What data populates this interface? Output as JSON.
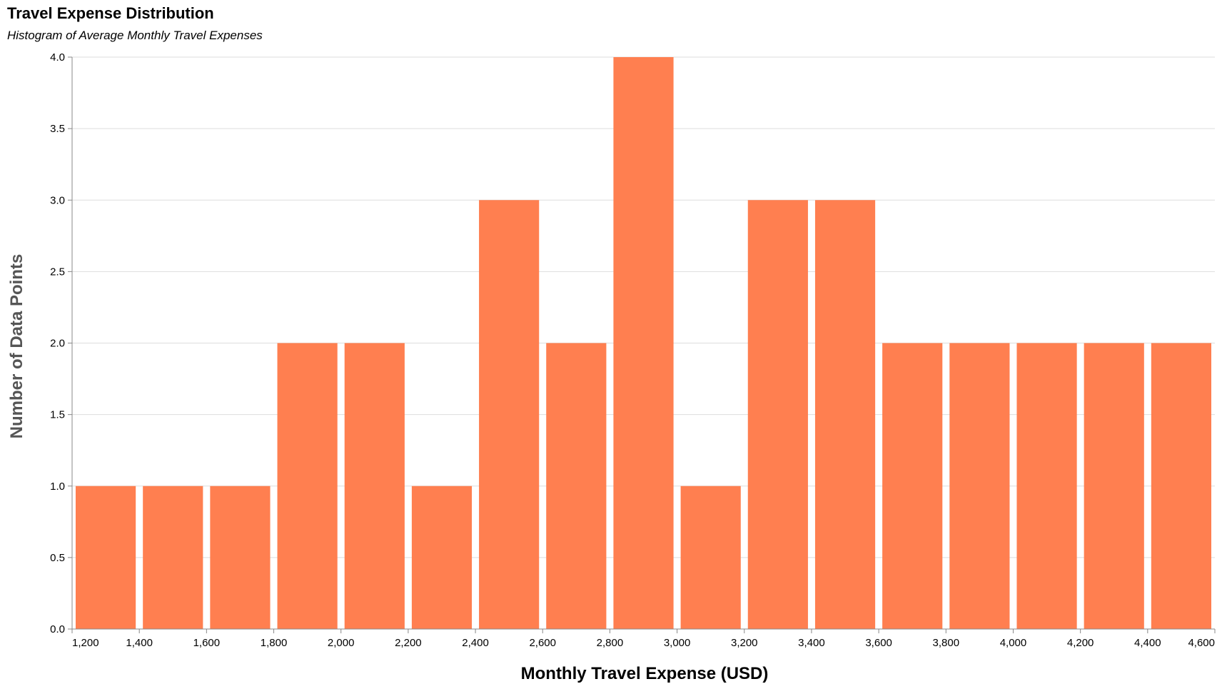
{
  "chart_data": {
    "type": "bar",
    "title": "Travel Expense Distribution",
    "subtitle": "Histogram of Average Monthly Travel Expenses",
    "xlabel": "Monthly Travel Expense (USD)",
    "ylabel": "Number of Data Points",
    "bin_width": 200,
    "bins": [
      {
        "start": 1200,
        "end": 1400,
        "count": 1
      },
      {
        "start": 1400,
        "end": 1600,
        "count": 1
      },
      {
        "start": 1600,
        "end": 1800,
        "count": 1
      },
      {
        "start": 1800,
        "end": 2000,
        "count": 2
      },
      {
        "start": 2000,
        "end": 2200,
        "count": 2
      },
      {
        "start": 2200,
        "end": 2400,
        "count": 1
      },
      {
        "start": 2400,
        "end": 2600,
        "count": 3
      },
      {
        "start": 2600,
        "end": 2800,
        "count": 2
      },
      {
        "start": 2800,
        "end": 3000,
        "count": 4
      },
      {
        "start": 3000,
        "end": 3200,
        "count": 1
      },
      {
        "start": 3200,
        "end": 3400,
        "count": 3
      },
      {
        "start": 3400,
        "end": 3600,
        "count": 3
      },
      {
        "start": 3600,
        "end": 3800,
        "count": 2
      },
      {
        "start": 3800,
        "end": 4000,
        "count": 2
      },
      {
        "start": 4000,
        "end": 4200,
        "count": 2
      },
      {
        "start": 4200,
        "end": 4400,
        "count": 2
      },
      {
        "start": 4400,
        "end": 4600,
        "count": 2
      }
    ],
    "xlim": [
      1200,
      4600
    ],
    "ylim": [
      0,
      4
    ],
    "x_ticks": [
      "1,200",
      "1,400",
      "1,600",
      "1,800",
      "2,000",
      "2,200",
      "2,400",
      "2,600",
      "2,800",
      "3,000",
      "3,200",
      "3,400",
      "3,600",
      "3,800",
      "4,000",
      "4,200",
      "4,400",
      "4,600"
    ],
    "x_tick_values": [
      1200,
      1400,
      1600,
      1800,
      2000,
      2200,
      2400,
      2600,
      2800,
      3000,
      3200,
      3400,
      3600,
      3800,
      4000,
      4200,
      4400,
      4600
    ],
    "y_ticks": [
      "0.0",
      "0.5",
      "1.0",
      "1.5",
      "2.0",
      "2.5",
      "3.0",
      "3.5",
      "4.0"
    ],
    "y_tick_values": [
      0,
      0.5,
      1,
      1.5,
      2,
      2.5,
      3,
      3.5,
      4
    ],
    "grid": true,
    "legend": "none",
    "colors": {
      "bar": "#ff7f50",
      "grid": "#dddddd",
      "axis": "#888888",
      "axis_title_y": "#555555",
      "axis_title_x": "#000000"
    }
  }
}
